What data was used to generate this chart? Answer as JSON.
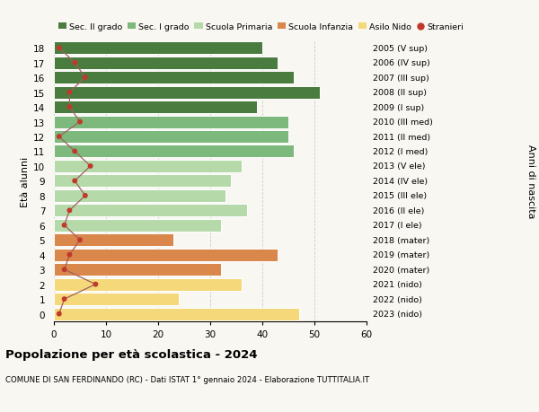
{
  "ages": [
    18,
    17,
    16,
    15,
    14,
    13,
    12,
    11,
    10,
    9,
    8,
    7,
    6,
    5,
    4,
    3,
    2,
    1,
    0
  ],
  "bar_values": [
    40,
    43,
    46,
    51,
    39,
    45,
    45,
    46,
    36,
    34,
    33,
    37,
    32,
    23,
    43,
    32,
    36,
    24,
    47
  ],
  "stranieri_values": [
    1,
    4,
    6,
    3,
    3,
    5,
    1,
    4,
    7,
    4,
    6,
    3,
    2,
    5,
    3,
    2,
    8,
    2,
    1
  ],
  "right_labels": [
    "2005 (V sup)",
    "2006 (IV sup)",
    "2007 (III sup)",
    "2008 (II sup)",
    "2009 (I sup)",
    "2010 (III med)",
    "2011 (II med)",
    "2012 (I med)",
    "2013 (V ele)",
    "2014 (IV ele)",
    "2015 (III ele)",
    "2016 (II ele)",
    "2017 (I ele)",
    "2018 (mater)",
    "2019 (mater)",
    "2020 (mater)",
    "2021 (nido)",
    "2022 (nido)",
    "2023 (nido)"
  ],
  "bar_colors": [
    "#4a7c3f",
    "#4a7c3f",
    "#4a7c3f",
    "#4a7c3f",
    "#4a7c3f",
    "#7db87d",
    "#7db87d",
    "#7db87d",
    "#b5d9a8",
    "#b5d9a8",
    "#b5d9a8",
    "#b5d9a8",
    "#b5d9a8",
    "#d9874a",
    "#d9874a",
    "#d9874a",
    "#f5d87a",
    "#f5d87a",
    "#f5d87a"
  ],
  "legend_labels": [
    "Sec. II grado",
    "Sec. I grado",
    "Scuola Primaria",
    "Scuola Infanzia",
    "Asilo Nido",
    "Stranieri"
  ],
  "legend_colors": [
    "#4a7c3f",
    "#7db87d",
    "#b5d9a8",
    "#d9874a",
    "#f5d87a",
    "#c0392b"
  ],
  "title": "Popolazione per età scolastica - 2024",
  "subtitle": "COMUNE DI SAN FERDINANDO (RC) - Dati ISTAT 1° gennaio 2024 - Elaborazione TUTTITALIA.IT",
  "ylabel_left": "Età alunni",
  "ylabel_right": "Anni di nascita",
  "bg_color": "#f9f7f2",
  "stranieri_color": "#c0392b",
  "stranieri_line_color": "#a06060",
  "grid_color": "#cccccc",
  "bar_height": 0.85
}
